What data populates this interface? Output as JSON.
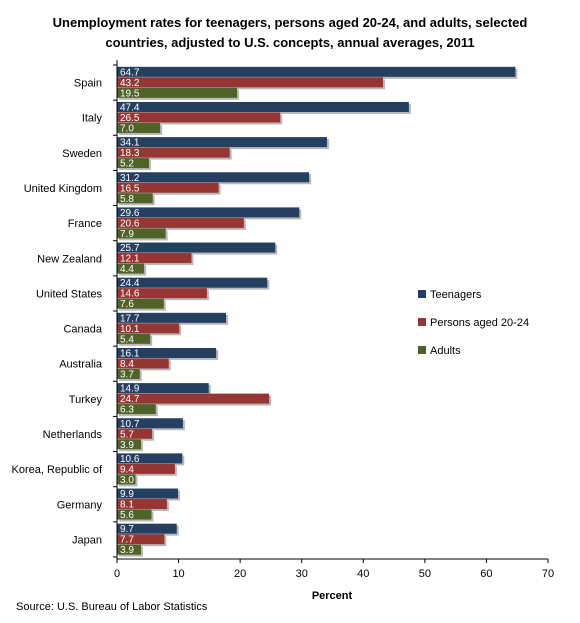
{
  "chart_data": {
    "type": "bar",
    "orientation": "horizontal",
    "title_lines": [
      "Unemployment rates for teenagers, persons aged 20-24, and adults, selected",
      "countries, adjusted to U.S. concepts, annual averages, 2011"
    ],
    "xlabel": "Percent",
    "xlim": [
      0,
      70
    ],
    "xticks": [
      0,
      10,
      20,
      30,
      40,
      50,
      60,
      70
    ],
    "grid": false,
    "legend_position": "right",
    "categories": [
      "Spain",
      "Italy",
      "Sweden",
      "United Kingdom",
      "France",
      "New Zealand",
      "United States",
      "Canada",
      "Australia",
      "Turkey",
      "Netherlands",
      "Korea, Republic of",
      "Germany",
      "Japan"
    ],
    "series": [
      {
        "name": "Teenagers",
        "color": "#243f60",
        "values": [
          64.7,
          47.4,
          34.1,
          31.2,
          29.6,
          25.7,
          24.4,
          17.7,
          16.1,
          14.9,
          10.7,
          10.6,
          9.9,
          9.7
        ]
      },
      {
        "name": "Persons aged 20-24",
        "color": "#963634",
        "values": [
          43.2,
          26.5,
          18.3,
          16.5,
          20.6,
          12.1,
          14.6,
          10.1,
          8.4,
          24.7,
          5.7,
          9.4,
          8.1,
          7.7
        ]
      },
      {
        "name": "Adults",
        "color": "#4f6228",
        "values": [
          19.5,
          7.0,
          5.2,
          5.8,
          7.9,
          4.4,
          7.6,
          5.4,
          3.7,
          6.3,
          3.9,
          3.0,
          5.6,
          3.9
        ]
      }
    ],
    "value_labels": [
      [
        "64.7",
        "43.2",
        "19.5"
      ],
      [
        "47.4",
        "26.5",
        "7.0"
      ],
      [
        "34.1",
        "18.3",
        "5.2"
      ],
      [
        "31.2",
        "16.5",
        "5.8"
      ],
      [
        "29.6",
        "20.6",
        "7.9"
      ],
      [
        "25.7",
        "12.1",
        "4.4"
      ],
      [
        "24.4",
        "14.6",
        "7.6"
      ],
      [
        "17.7",
        "10.1",
        "5.4"
      ],
      [
        "16.1",
        "8.4",
        "3.7"
      ],
      [
        "14.9",
        "24.7",
        "6.3"
      ],
      [
        "10.7",
        "5.7",
        "3.9"
      ],
      [
        "10.6",
        "9.4",
        "3.0"
      ],
      [
        "9.9",
        "8.1",
        "5.6"
      ],
      [
        "9.7",
        "7.7",
        "3.9"
      ]
    ]
  },
  "source": "Source: U.S. Bureau of Labor Statistics"
}
